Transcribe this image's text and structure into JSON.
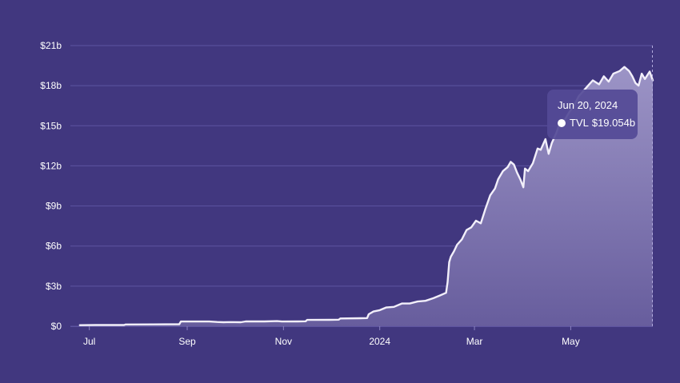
{
  "chart_data": {
    "type": "area",
    "title": "",
    "xlabel": "",
    "ylabel": "",
    "ylim": [
      0,
      21
    ],
    "y_unit": "billion USD",
    "y_ticks": [
      "$0",
      "$3b",
      "$6b",
      "$9b",
      "$12b",
      "$15b",
      "$18b",
      "$21b"
    ],
    "x_ticks": [
      "Jul",
      "Sep",
      "Nov",
      "2024",
      "Mar",
      "May"
    ],
    "grid": true,
    "series": [
      {
        "name": "TVL",
        "points": [
          [
            "2023-06-25",
            0.08
          ],
          [
            "2023-07-05",
            0.09
          ],
          [
            "2023-07-15",
            0.09
          ],
          [
            "2023-07-23",
            0.09
          ],
          [
            "2023-07-24",
            0.13
          ],
          [
            "2023-08-10",
            0.14
          ],
          [
            "2023-08-27",
            0.15
          ],
          [
            "2023-08-28",
            0.35
          ],
          [
            "2023-09-15",
            0.35
          ],
          [
            "2023-09-20",
            0.32
          ],
          [
            "2023-09-24",
            0.3
          ],
          [
            "2023-09-28",
            0.31
          ],
          [
            "2023-10-05",
            0.3
          ],
          [
            "2023-10-08",
            0.36
          ],
          [
            "2023-10-20",
            0.36
          ],
          [
            "2023-10-28",
            0.38
          ],
          [
            "2023-10-31",
            0.35
          ],
          [
            "2023-11-10",
            0.36
          ],
          [
            "2023-11-15",
            0.37
          ],
          [
            "2023-11-16",
            0.47
          ],
          [
            "2023-11-30",
            0.48
          ],
          [
            "2023-12-06",
            0.49
          ],
          [
            "2023-12-07",
            0.58
          ],
          [
            "2023-12-20",
            0.6
          ],
          [
            "2023-12-24",
            0.61
          ],
          [
            "2023-12-25",
            0.9
          ],
          [
            "2023-12-28",
            1.1
          ],
          [
            "2024-01-01",
            1.2
          ],
          [
            "2024-01-05",
            1.4
          ],
          [
            "2024-01-10",
            1.45
          ],
          [
            "2024-01-15",
            1.7
          ],
          [
            "2024-01-20",
            1.7
          ],
          [
            "2024-01-25",
            1.85
          ],
          [
            "2024-01-30",
            1.9
          ],
          [
            "2024-02-04",
            2.1
          ],
          [
            "2024-02-08",
            2.3
          ],
          [
            "2024-02-12",
            2.5
          ],
          [
            "2024-02-13",
            3.3
          ],
          [
            "2024-02-14",
            4.8
          ],
          [
            "2024-02-15",
            5.2
          ],
          [
            "2024-02-17",
            5.6
          ],
          [
            "2024-02-19",
            6.1
          ],
          [
            "2024-02-22",
            6.5
          ],
          [
            "2024-02-25",
            7.2
          ],
          [
            "2024-02-28",
            7.4
          ],
          [
            "2024-03-02",
            7.9
          ],
          [
            "2024-03-05",
            7.7
          ],
          [
            "2024-03-08",
            8.8
          ],
          [
            "2024-03-11",
            9.8
          ],
          [
            "2024-03-14",
            10.3
          ],
          [
            "2024-03-16",
            11.0
          ],
          [
            "2024-03-19",
            11.6
          ],
          [
            "2024-03-22",
            11.9
          ],
          [
            "2024-03-24",
            12.3
          ],
          [
            "2024-03-26",
            12.1
          ],
          [
            "2024-03-28",
            11.5
          ],
          [
            "2024-03-30",
            11.0
          ],
          [
            "2024-04-01",
            10.4
          ],
          [
            "2024-04-02",
            11.8
          ],
          [
            "2024-04-04",
            11.6
          ],
          [
            "2024-04-07",
            12.2
          ],
          [
            "2024-04-10",
            13.3
          ],
          [
            "2024-04-12",
            13.2
          ],
          [
            "2024-04-15",
            14.0
          ],
          [
            "2024-04-17",
            12.9
          ],
          [
            "2024-04-19",
            13.7
          ],
          [
            "2024-04-22",
            14.5
          ],
          [
            "2024-04-24",
            15.2
          ],
          [
            "2024-04-27",
            15.4
          ],
          [
            "2024-04-30",
            16.0
          ],
          [
            "2024-05-03",
            16.5
          ],
          [
            "2024-05-06",
            17.2
          ],
          [
            "2024-05-09",
            17.6
          ],
          [
            "2024-05-12",
            18.0
          ],
          [
            "2024-05-15",
            18.4
          ],
          [
            "2024-05-19",
            18.1
          ],
          [
            "2024-05-22",
            18.7
          ],
          [
            "2024-05-25",
            18.3
          ],
          [
            "2024-05-28",
            18.9
          ],
          [
            "2024-06-01",
            19.1
          ],
          [
            "2024-06-04",
            19.4
          ],
          [
            "2024-06-07",
            19.1
          ],
          [
            "2024-06-09",
            18.7
          ],
          [
            "2024-06-11",
            18.2
          ],
          [
            "2024-06-13",
            18.0
          ],
          [
            "2024-06-15",
            18.9
          ],
          [
            "2024-06-17",
            18.5
          ],
          [
            "2024-06-20",
            19.054
          ],
          [
            "2024-06-22",
            18.4
          ]
        ]
      }
    ],
    "tooltip": {
      "date": "Jun 20, 2024",
      "series_label": "TVL",
      "value": "$19.054b"
    }
  },
  "colors": {
    "background": "#41377f",
    "grid": "#5d54a0",
    "axis_text": "#ffffff",
    "line": "#f2effa",
    "area_top": "#9c94c6",
    "area_bottom": "#675d9d",
    "tooltip_bg": "#544a96"
  }
}
